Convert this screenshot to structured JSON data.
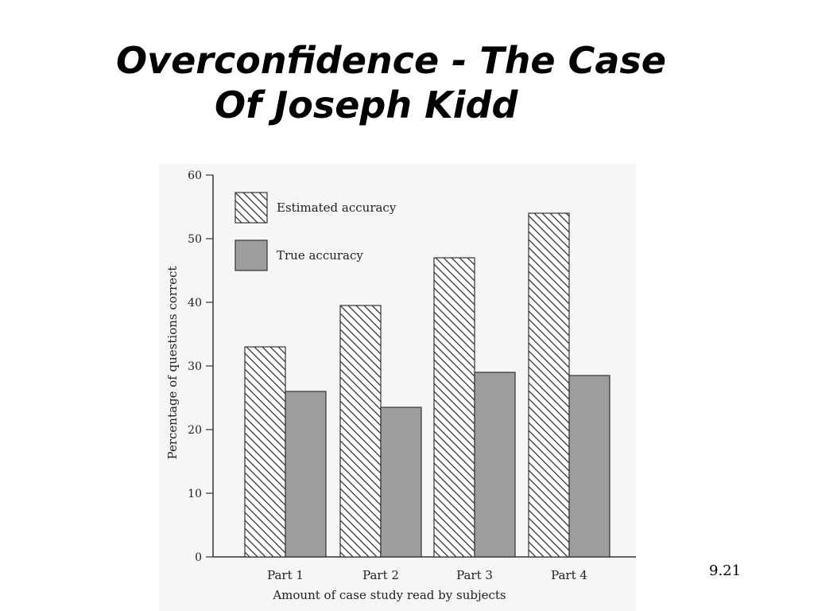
{
  "slide": {
    "title_line1": "Overconfidence - The Case",
    "title_line2": "Of Joseph Kidd",
    "slide_number": "9.21"
  },
  "colors": {
    "background": "#ffffff",
    "chart_background": "#f6f6f4",
    "true_accuracy_fill": "#9d9d9d",
    "estimated_accuracy_hatch": "#333333",
    "axis": "#333333"
  },
  "chart_data": {
    "type": "bar",
    "categories": [
      "Part 1",
      "Part 2",
      "Part 3",
      "Part 4"
    ],
    "series": [
      {
        "name": "Estimated accuracy",
        "values": [
          33,
          39.5,
          47,
          54
        ],
        "pattern": "diagonal-hatch"
      },
      {
        "name": "True accuracy",
        "values": [
          26,
          23.5,
          29,
          28.5
        ],
        "pattern": "solid-gray"
      }
    ],
    "yticks": [
      0,
      10,
      20,
      30,
      40,
      50,
      60
    ],
    "ylim": [
      0,
      60
    ],
    "xlabel": "Amount of case study read by subjects",
    "ylabel": "Percentage of questions correct",
    "legend_position": "top-left",
    "grid": false
  }
}
